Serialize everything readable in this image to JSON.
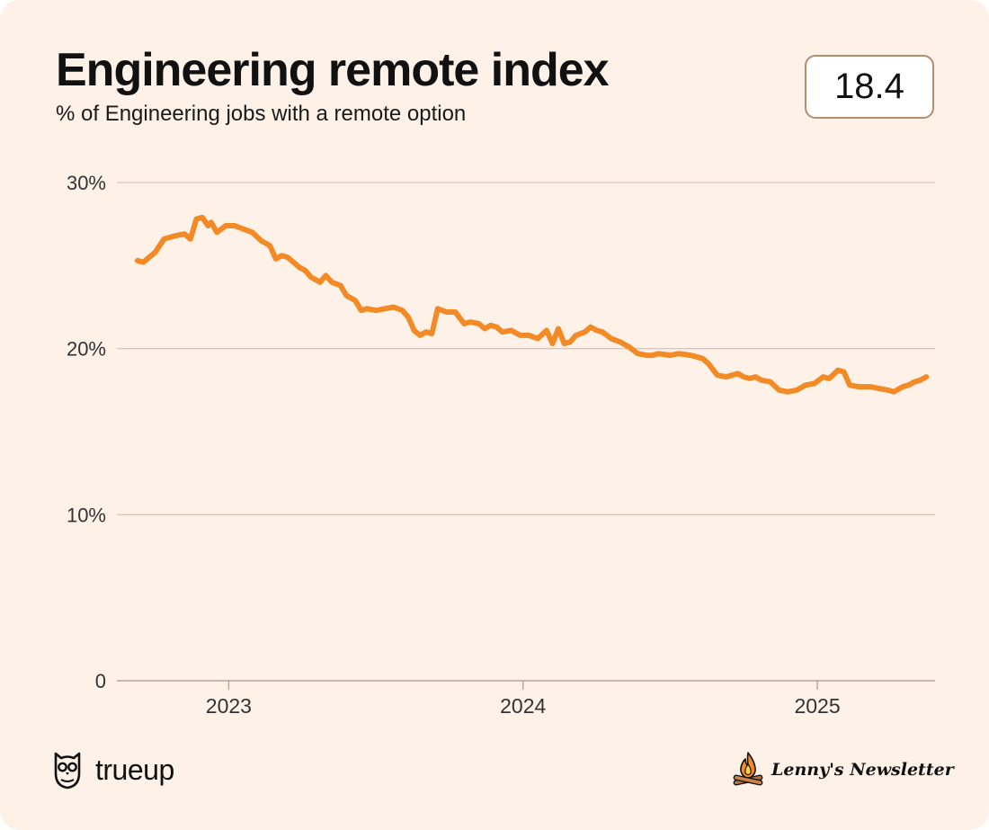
{
  "header": {
    "title": "Engineering remote index",
    "subtitle": "% of Engineering jobs with a remote option",
    "current_value": "18.4"
  },
  "footer": {
    "left_brand": "trueup",
    "right_brand": "Lenny's Newsletter"
  },
  "colors": {
    "background": "#fdf1e8",
    "line": "#f28a26",
    "gridline": "#d2bfae",
    "box_border": "#b48c6e"
  },
  "icons": {
    "left_logo": "owl-icon",
    "right_logo": "campfire-icon"
  },
  "chart_data": {
    "type": "line",
    "title": "Engineering remote index",
    "subtitle": "% of Engineering jobs with a remote option",
    "ylim": [
      0,
      30
    ],
    "y_ticks": [
      {
        "value": 0,
        "label": "0"
      },
      {
        "value": 10,
        "label": "10%"
      },
      {
        "value": 20,
        "label": "20%"
      },
      {
        "value": 30,
        "label": "30%"
      }
    ],
    "x_ticks": [
      {
        "value": 2023.0,
        "label": "2023"
      },
      {
        "value": 2024.0,
        "label": "2024"
      },
      {
        "value": 2025.0,
        "label": "2025"
      }
    ],
    "xlim": [
      2022.62,
      2025.4
    ],
    "grid": true,
    "series": [
      {
        "values": [
          [
            2022.69,
            25.3
          ],
          [
            2022.71,
            25.2
          ],
          [
            2022.75,
            25.8
          ],
          [
            2022.78,
            26.6
          ],
          [
            2022.82,
            26.8
          ],
          [
            2022.85,
            26.9
          ],
          [
            2022.87,
            26.6
          ],
          [
            2022.89,
            27.8
          ],
          [
            2022.91,
            27.9
          ],
          [
            2022.93,
            27.4
          ],
          [
            2022.94,
            27.6
          ],
          [
            2022.96,
            27.0
          ],
          [
            2022.99,
            27.4
          ],
          [
            2023.02,
            27.4
          ],
          [
            2023.05,
            27.2
          ],
          [
            2023.08,
            27.0
          ],
          [
            2023.11,
            26.5
          ],
          [
            2023.14,
            26.2
          ],
          [
            2023.16,
            25.4
          ],
          [
            2023.18,
            25.6
          ],
          [
            2023.2,
            25.5
          ],
          [
            2023.24,
            24.9
          ],
          [
            2023.26,
            24.7
          ],
          [
            2023.28,
            24.3
          ],
          [
            2023.31,
            24.0
          ],
          [
            2023.33,
            24.4
          ],
          [
            2023.35,
            24.0
          ],
          [
            2023.38,
            23.8
          ],
          [
            2023.4,
            23.2
          ],
          [
            2023.43,
            22.9
          ],
          [
            2023.45,
            22.3
          ],
          [
            2023.47,
            22.4
          ],
          [
            2023.5,
            22.3
          ],
          [
            2023.53,
            22.4
          ],
          [
            2023.56,
            22.5
          ],
          [
            2023.59,
            22.3
          ],
          [
            2023.61,
            21.9
          ],
          [
            2023.63,
            21.1
          ],
          [
            2023.65,
            20.8
          ],
          [
            2023.67,
            21.0
          ],
          [
            2023.69,
            20.9
          ],
          [
            2023.71,
            22.4
          ],
          [
            2023.74,
            22.2
          ],
          [
            2023.77,
            22.2
          ],
          [
            2023.8,
            21.5
          ],
          [
            2023.82,
            21.6
          ],
          [
            2023.85,
            21.5
          ],
          [
            2023.87,
            21.2
          ],
          [
            2023.89,
            21.4
          ],
          [
            2023.91,
            21.3
          ],
          [
            2023.93,
            21.0
          ],
          [
            2023.96,
            21.1
          ],
          [
            2023.99,
            20.8
          ],
          [
            2024.02,
            20.8
          ],
          [
            2024.05,
            20.6
          ],
          [
            2024.08,
            21.1
          ],
          [
            2024.1,
            20.3
          ],
          [
            2024.12,
            21.2
          ],
          [
            2024.14,
            20.3
          ],
          [
            2024.16,
            20.4
          ],
          [
            2024.18,
            20.8
          ],
          [
            2024.21,
            21.0
          ],
          [
            2024.23,
            21.3
          ],
          [
            2024.25,
            21.1
          ],
          [
            2024.27,
            21.0
          ],
          [
            2024.3,
            20.6
          ],
          [
            2024.33,
            20.4
          ],
          [
            2024.36,
            20.1
          ],
          [
            2024.39,
            19.7
          ],
          [
            2024.42,
            19.6
          ],
          [
            2024.44,
            19.6
          ],
          [
            2024.46,
            19.7
          ],
          [
            2024.5,
            19.6
          ],
          [
            2024.53,
            19.7
          ],
          [
            2024.57,
            19.6
          ],
          [
            2024.61,
            19.4
          ],
          [
            2024.63,
            19.1
          ],
          [
            2024.66,
            18.4
          ],
          [
            2024.69,
            18.3
          ],
          [
            2024.71,
            18.4
          ],
          [
            2024.73,
            18.5
          ],
          [
            2024.75,
            18.3
          ],
          [
            2024.77,
            18.2
          ],
          [
            2024.79,
            18.3
          ],
          [
            2024.81,
            18.1
          ],
          [
            2024.84,
            18.0
          ],
          [
            2024.87,
            17.5
          ],
          [
            2024.9,
            17.4
          ],
          [
            2024.93,
            17.5
          ],
          [
            2024.96,
            17.8
          ],
          [
            2024.99,
            17.9
          ],
          [
            2025.02,
            18.3
          ],
          [
            2025.04,
            18.2
          ],
          [
            2025.07,
            18.7
          ],
          [
            2025.09,
            18.6
          ],
          [
            2025.11,
            17.8
          ],
          [
            2025.14,
            17.7
          ],
          [
            2025.18,
            17.7
          ],
          [
            2025.21,
            17.6
          ],
          [
            2025.24,
            17.5
          ],
          [
            2025.26,
            17.4
          ],
          [
            2025.29,
            17.7
          ],
          [
            2025.31,
            17.8
          ],
          [
            2025.33,
            18.0
          ],
          [
            2025.35,
            18.1
          ],
          [
            2025.37,
            18.3
          ]
        ]
      }
    ]
  }
}
